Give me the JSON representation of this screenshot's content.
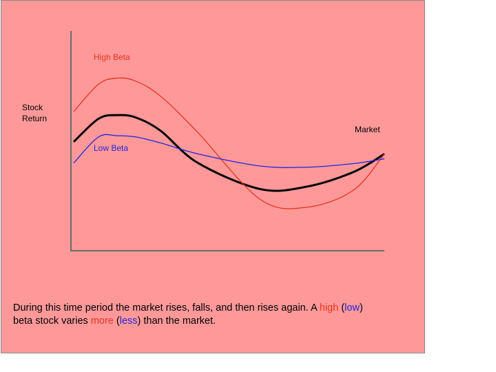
{
  "colors": {
    "background": "#ff9999",
    "market": "#000000",
    "high_beta": "#e8321e",
    "low_beta": "#2222dd"
  },
  "chart_data": {
    "type": "line",
    "ylabel": "Stock Return",
    "xlabel": "",
    "grid": false,
    "series": [
      {
        "name": "Market",
        "x": [
          0,
          8,
          14,
          20,
          28,
          40,
          60,
          75,
          90,
          100
        ],
        "y": [
          0.4,
          0.78,
          0.84,
          0.8,
          0.58,
          0.05,
          -0.38,
          -0.34,
          -0.1,
          0.2
        ]
      },
      {
        "name": "High Beta",
        "x": [
          0,
          8,
          14,
          20,
          28,
          40,
          60,
          75,
          90,
          100
        ],
        "y": [
          0.9,
          1.35,
          1.45,
          1.4,
          1.15,
          0.55,
          -0.55,
          -0.68,
          -0.4,
          0.2
        ]
      },
      {
        "name": "Low Beta",
        "x": [
          0,
          8,
          14,
          20,
          28,
          40,
          60,
          75,
          90,
          100
        ],
        "y": [
          0.05,
          0.48,
          0.5,
          0.48,
          0.38,
          0.2,
          0.0,
          -0.02,
          0.04,
          0.12
        ]
      }
    ]
  },
  "caption": {
    "line1_a": "During this time period the market rises, falls, and then rises again. A ",
    "high": "high",
    "paren_open": " (",
    "low": "low",
    "paren_close": ")",
    "line2_a": "beta stock varies ",
    "more": "more",
    "paren_open2": " (",
    "less": "less",
    "line2_b": ") than the market."
  }
}
